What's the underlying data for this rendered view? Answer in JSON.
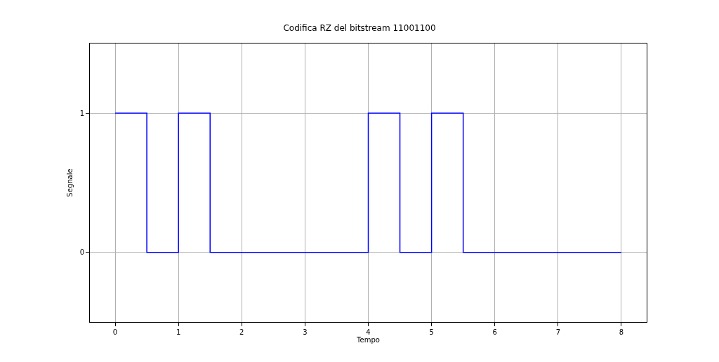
{
  "chart_data": {
    "type": "step",
    "title": "Codifica RZ del bitstream 11001100",
    "xlabel": "Tempo",
    "ylabel": "Segnale",
    "x": [
      0,
      0.5,
      1,
      1.5,
      2,
      2.5,
      3,
      3.5,
      4,
      4.5,
      5,
      5.5,
      6,
      6.5,
      7,
      7.5,
      8
    ],
    "series": [
      {
        "color": "#0000ff",
        "values": [
          1,
          0,
          1,
          0,
          0,
          0,
          0,
          0,
          1,
          0,
          1,
          0,
          0,
          0,
          0,
          0,
          0
        ]
      }
    ],
    "xlim": [
      -0.4,
      8.4
    ],
    "xticks": [
      0,
      1,
      2,
      3,
      4,
      5,
      6,
      7,
      8
    ],
    "ylim": [
      -0.5,
      1.5
    ],
    "yticks": [
      0,
      1
    ],
    "grid": true,
    "legend": false,
    "line_style": "solid",
    "marker": "none"
  }
}
